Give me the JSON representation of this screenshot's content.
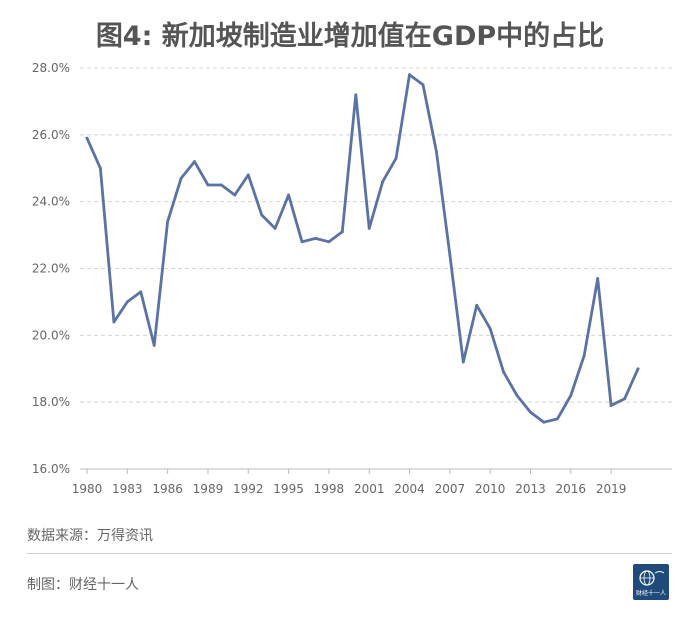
{
  "chart_data": {
    "type": "line",
    "title": "图4: 新加坡制造业增加值在GDP中的占比",
    "xlabel": "",
    "ylabel": "",
    "x_ticks": [
      "1980",
      "1983",
      "1986",
      "1989",
      "1992",
      "1995",
      "1998",
      "2001",
      "2004",
      "2007",
      "2010",
      "2013",
      "2016",
      "2019"
    ],
    "y_ticks": [
      "16.0%",
      "18.0%",
      "20.0%",
      "22.0%",
      "24.0%",
      "26.0%",
      "28.0%"
    ],
    "ylim": [
      16,
      28
    ],
    "xlim": [
      1980,
      2021
    ],
    "grid": "horizontal-dashed",
    "series": [
      {
        "color": "#5b73a4",
        "x": [
          1980,
          1981,
          1982,
          1983,
          1984,
          1985,
          1986,
          1987,
          1988,
          1989,
          1990,
          1991,
          1992,
          1993,
          1994,
          1995,
          1996,
          1997,
          1998,
          1999,
          2000,
          2001,
          2002,
          2003,
          2004,
          2005,
          2006,
          2007,
          2008,
          2009,
          2010,
          2011,
          2012,
          2013,
          2014,
          2015,
          2016,
          2017,
          2018,
          2019,
          2020,
          2021
        ],
        "values": [
          25.9,
          25.0,
          20.4,
          21.0,
          21.3,
          19.7,
          23.4,
          24.7,
          25.2,
          24.5,
          24.5,
          24.2,
          24.8,
          23.6,
          23.2,
          24.2,
          22.8,
          22.9,
          22.8,
          23.1,
          27.2,
          23.2,
          24.6,
          25.3,
          27.8,
          27.5,
          25.5,
          22.4,
          19.2,
          20.9,
          20.2,
          18.9,
          18.2,
          17.7,
          17.4,
          17.5,
          18.2,
          19.4,
          21.7,
          17.9,
          18.1,
          19.0
        ]
      }
    ]
  },
  "footer": {
    "source": "数据来源：万得资讯",
    "credit": "制图：财经十一人",
    "logo_text": "财经十一人"
  }
}
